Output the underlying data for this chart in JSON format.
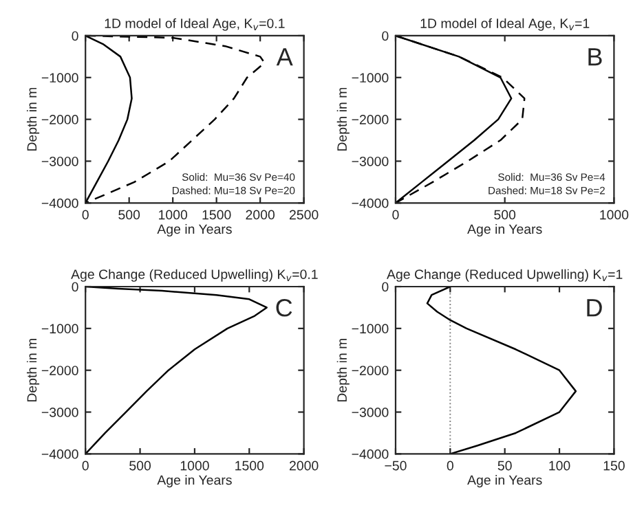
{
  "chart_data": [
    {
      "type": "line",
      "title": "1D model of Ideal Age, K$_{v}$=0.1",
      "xlabel": "Age in Years",
      "ylabel": "Depth in m",
      "xlim": [
        0,
        2500
      ],
      "xticks": [
        0,
        500,
        1000,
        1500,
        2000,
        2500
      ],
      "ylim": [
        -4000,
        0
      ],
      "yticks": [
        -4000,
        -3000,
        -2000,
        -1000,
        0
      ],
      "annotations": [
        "A",
        "Solid:  Mu=36 Sv Pe=40",
        "Dashed: Mu=18 Sv Pe=20"
      ],
      "series": [
        {
          "color": "#000000",
          "line_style": "solid",
          "x": [
            0,
            200,
            400,
            510,
            530,
            480,
            380,
            260,
            130,
            0
          ],
          "values": [
            0,
            -200,
            -500,
            -1000,
            -1500,
            -2000,
            -2500,
            -3000,
            -3500,
            -4000
          ]
        },
        {
          "color": "#000000",
          "line_style": "dashed",
          "x": [
            0,
            1000,
            1600,
            2000,
            2050,
            1850,
            1700,
            1480,
            1220,
            960,
            560,
            0
          ],
          "values": [
            0,
            -50,
            -250,
            -500,
            -650,
            -1000,
            -1500,
            -2000,
            -2500,
            -3000,
            -3500,
            -4000
          ]
        }
      ]
    },
    {
      "type": "line",
      "title": "1D model of Ideal Age, K$_{v}$=1",
      "xlabel": "Age in Years",
      "ylabel": "Depth in m",
      "xlim": [
        0,
        1000
      ],
      "xticks": [
        0,
        500,
        1000
      ],
      "ylim": [
        -4000,
        0
      ],
      "yticks": [
        -4000,
        -3000,
        -2000,
        -1000,
        0
      ],
      "annotations": [
        "B",
        "Solid:  Mu=36 Sv Pe=4",
        "Dashed: Mu=18 Sv Pe=2"
      ],
      "series": [
        {
          "color": "#000000",
          "line_style": "solid",
          "x": [
            0,
            290,
            480,
            530,
            470,
            360,
            240,
            120,
            0
          ],
          "values": [
            0,
            -500,
            -1000,
            -1500,
            -2000,
            -2500,
            -3000,
            -3500,
            -4000
          ]
        },
        {
          "color": "#000000",
          "line_style": "dashed",
          "x": [
            0,
            290,
            490,
            590,
            580,
            480,
            330,
            170,
            0
          ],
          "values": [
            0,
            -500,
            -1000,
            -1500,
            -2000,
            -2500,
            -3000,
            -3500,
            -4000
          ]
        }
      ]
    },
    {
      "type": "line",
      "title": "Age Change (Reduced Upwelling) K$_{v}$=0.1",
      "xlabel": "Age in Years",
      "ylabel": "Depth in m",
      "xlim": [
        0,
        2000
      ],
      "xticks": [
        0,
        500,
        1000,
        1500,
        2000
      ],
      "ylim": [
        -4000,
        0
      ],
      "yticks": [
        -4000,
        -3000,
        -2000,
        -1000,
        0
      ],
      "annotations": [
        "C"
      ],
      "series": [
        {
          "color": "#000000",
          "line_style": "solid",
          "x": [
            0,
            300,
            700,
            1200,
            1500,
            1660,
            1550,
            1300,
            1000,
            760,
            560,
            370,
            180,
            0
          ],
          "values": [
            0,
            -50,
            -100,
            -200,
            -300,
            -500,
            -700,
            -1000,
            -1500,
            -2000,
            -2500,
            -3000,
            -3500,
            -4000
          ]
        }
      ]
    },
    {
      "type": "line",
      "title": "Age Change (Reduced Upwelling) K$_{v}$=1",
      "xlabel": "Age in Years",
      "ylabel": "Depth in m",
      "xlim": [
        -50,
        150
      ],
      "xticks": [
        -50,
        0,
        50,
        100,
        150
      ],
      "ylim": [
        -4000,
        0
      ],
      "yticks": [
        -4000,
        -3000,
        -2000,
        -1000,
        0
      ],
      "annotations": [
        "D"
      ],
      "ref_lines": [
        {
          "axis": "x",
          "value": 0,
          "line_style": "dotted",
          "color": "#808080"
        }
      ],
      "series": [
        {
          "color": "#000000",
          "line_style": "solid",
          "x": [
            0,
            -17,
            -21,
            -12,
            0,
            15,
            60,
            100,
            115,
            100,
            60,
            25,
            0
          ],
          "values": [
            0,
            -200,
            -400,
            -600,
            -800,
            -1000,
            -1500,
            -2000,
            -2500,
            -3000,
            -3500,
            -3800,
            -4000
          ]
        }
      ]
    }
  ]
}
